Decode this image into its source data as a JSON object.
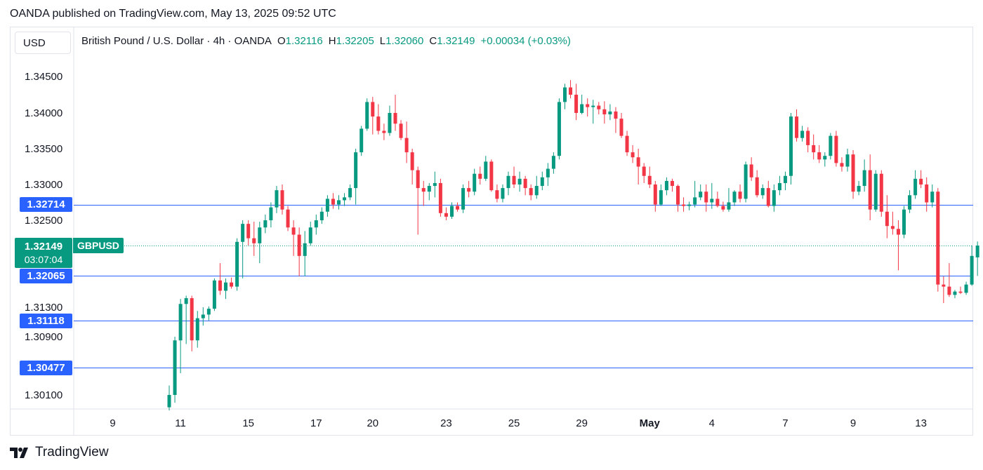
{
  "header": {
    "publisher_line": "OANDA published on TradingView.com, May 13, 2025 09:52 UTC"
  },
  "toolbar": {
    "currency": "USD"
  },
  "legend": {
    "symbol_desc": "British Pound / U.S. Dollar · 4h · OANDA",
    "o_label": "O",
    "o_value": "1.32116",
    "h_label": "H",
    "h_value": "1.32205",
    "l_label": "L",
    "l_value": "1.32060",
    "c_label": "C",
    "c_value": "1.32149",
    "change": "+0.00034 (+0.03%)"
  },
  "price_tags": {
    "line_1": "1.32714",
    "current_price": "1.32149",
    "countdown": "03:07:04",
    "symbol": "GBPUSD",
    "line_2": "1.32065",
    "line_3": "1.31118",
    "line_4": "1.30477"
  },
  "brand": {
    "name": "TradingView"
  },
  "colors": {
    "up": "#089981",
    "down": "#f23645",
    "hline": "#2962ff",
    "axis_text": "#131722",
    "current": "#089981"
  },
  "chart_data": {
    "type": "candlestick",
    "title": "British Pound / U.S. Dollar · 4h · OANDA",
    "y_tick_labels": [
      "1.34500",
      "1.34000",
      "1.33500",
      "1.33000",
      "1.32500",
      "1.31300",
      "1.30900",
      "1.30100"
    ],
    "y_tick_values": [
      1.345,
      1.34,
      1.335,
      1.33,
      1.325,
      1.313,
      1.309,
      1.301
    ],
    "x_tick_labels": [
      "9",
      "11",
      "15",
      "17",
      "20",
      "23",
      "25",
      "29",
      "May",
      "4",
      "7",
      "9",
      "13"
    ],
    "x_tick_index": [
      -10,
      2,
      14,
      26,
      36,
      49,
      61,
      73,
      85,
      96,
      109,
      121,
      133
    ],
    "horizontal_levels": [
      1.32714,
      1.32065,
      1.31118,
      1.30477
    ],
    "current_price": 1.32149,
    "candles": [
      {
        "o": 1.2994,
        "h": 1.3023,
        "l": 1.299,
        "c": 1.301
      },
      {
        "o": 1.301,
        "h": 1.309,
        "l": 1.3,
        "c": 1.3085
      },
      {
        "o": 1.3085,
        "h": 1.315,
        "l": 1.304,
        "c": 1.3138
      },
      {
        "o": 1.3138,
        "h": 1.3158,
        "l": 1.308,
        "c": 1.3152
      },
      {
        "o": 1.3152,
        "h": 1.3158,
        "l": 1.307,
        "c": 1.3085
      },
      {
        "o": 1.3085,
        "h": 1.3125,
        "l": 1.3075,
        "c": 1.3115
      },
      {
        "o": 1.3115,
        "h": 1.313,
        "l": 1.3105,
        "c": 1.312
      },
      {
        "o": 1.312,
        "h": 1.3132,
        "l": 1.3112,
        "c": 1.3128
      },
      {
        "o": 1.3128,
        "h": 1.32,
        "l": 1.3125,
        "c": 1.3195
      },
      {
        "o": 1.3195,
        "h": 1.321,
        "l": 1.316,
        "c": 1.317
      },
      {
        "o": 1.317,
        "h": 1.32,
        "l": 1.315,
        "c": 1.319
      },
      {
        "o": 1.319,
        "h": 1.3202,
        "l": 1.3175,
        "c": 1.318
      },
      {
        "o": 1.318,
        "h": 1.3225,
        "l": 1.317,
        "c": 1.322
      },
      {
        "o": 1.322,
        "h": 1.325,
        "l": 1.32,
        "c": 1.3245
      },
      {
        "o": 1.3245,
        "h": 1.325,
        "l": 1.3215,
        "c": 1.3225
      },
      {
        "o": 1.3225,
        "h": 1.3248,
        "l": 1.3212,
        "c": 1.3218
      },
      {
        "o": 1.3218,
        "h": 1.3248,
        "l": 1.321,
        "c": 1.324
      },
      {
        "o": 1.324,
        "h": 1.3258,
        "l": 1.3232,
        "c": 1.325
      },
      {
        "o": 1.325,
        "h": 1.3275,
        "l": 1.324,
        "c": 1.3268
      },
      {
        "o": 1.3268,
        "h": 1.3298,
        "l": 1.326,
        "c": 1.3292
      },
      {
        "o": 1.3292,
        "h": 1.33,
        "l": 1.3258,
        "c": 1.3265
      },
      {
        "o": 1.3265,
        "h": 1.327,
        "l": 1.3235,
        "c": 1.324
      },
      {
        "o": 1.324,
        "h": 1.325,
        "l": 1.3212,
        "c": 1.323
      },
      {
        "o": 1.323,
        "h": 1.324,
        "l": 1.3205,
        "c": 1.3212
      },
      {
        "o": 1.3212,
        "h": 1.3235,
        "l": 1.3205,
        "c": 1.3218
      },
      {
        "o": 1.3218,
        "h": 1.3248,
        "l": 1.3215,
        "c": 1.324
      },
      {
        "o": 1.324,
        "h": 1.3258,
        "l": 1.323,
        "c": 1.325
      },
      {
        "o": 1.325,
        "h": 1.3268,
        "l": 1.3245,
        "c": 1.3262
      },
      {
        "o": 1.3262,
        "h": 1.3285,
        "l": 1.3255,
        "c": 1.328
      },
      {
        "o": 1.328,
        "h": 1.3288,
        "l": 1.3266,
        "c": 1.3272
      },
      {
        "o": 1.3272,
        "h": 1.3285,
        "l": 1.3265,
        "c": 1.3278
      },
      {
        "o": 1.3278,
        "h": 1.3288,
        "l": 1.327,
        "c": 1.3282
      },
      {
        "o": 1.3282,
        "h": 1.33,
        "l": 1.3278,
        "c": 1.3295
      },
      {
        "o": 1.3295,
        "h": 1.335,
        "l": 1.3272,
        "c": 1.3345
      },
      {
        "o": 1.3345,
        "h": 1.3382,
        "l": 1.334,
        "c": 1.3378
      },
      {
        "o": 1.3378,
        "h": 1.342,
        "l": 1.3375,
        "c": 1.3415
      },
      {
        "o": 1.3415,
        "h": 1.3422,
        "l": 1.337,
        "c": 1.3395
      },
      {
        "o": 1.3395,
        "h": 1.3412,
        "l": 1.337,
        "c": 1.3375
      },
      {
        "o": 1.3375,
        "h": 1.3385,
        "l": 1.3362,
        "c": 1.3372
      },
      {
        "o": 1.3372,
        "h": 1.341,
        "l": 1.3368,
        "c": 1.34
      },
      {
        "o": 1.34,
        "h": 1.3425,
        "l": 1.3375,
        "c": 1.3385
      },
      {
        "o": 1.3385,
        "h": 1.339,
        "l": 1.3362,
        "c": 1.3365
      },
      {
        "o": 1.3365,
        "h": 1.3388,
        "l": 1.333,
        "c": 1.3345
      },
      {
        "o": 1.3345,
        "h": 1.335,
        "l": 1.33,
        "c": 1.332
      },
      {
        "o": 1.332,
        "h": 1.3325,
        "l": 1.323,
        "c": 1.3295
      },
      {
        "o": 1.3295,
        "h": 1.3305,
        "l": 1.327,
        "c": 1.329
      },
      {
        "o": 1.329,
        "h": 1.3302,
        "l": 1.3278,
        "c": 1.3298
      },
      {
        "o": 1.3298,
        "h": 1.3318,
        "l": 1.3282,
        "c": 1.3302
      },
      {
        "o": 1.3302,
        "h": 1.3308,
        "l": 1.3255,
        "c": 1.326
      },
      {
        "o": 1.326,
        "h": 1.3268,
        "l": 1.325,
        "c": 1.3255
      },
      {
        "o": 1.3255,
        "h": 1.3275,
        "l": 1.3252,
        "c": 1.327
      },
      {
        "o": 1.327,
        "h": 1.3275,
        "l": 1.3262,
        "c": 1.3265
      },
      {
        "o": 1.3265,
        "h": 1.33,
        "l": 1.326,
        "c": 1.3295
      },
      {
        "o": 1.3295,
        "h": 1.3305,
        "l": 1.3282,
        "c": 1.329
      },
      {
        "o": 1.329,
        "h": 1.3322,
        "l": 1.3285,
        "c": 1.3315
      },
      {
        "o": 1.3315,
        "h": 1.3325,
        "l": 1.33,
        "c": 1.3308
      },
      {
        "o": 1.3308,
        "h": 1.334,
        "l": 1.3305,
        "c": 1.3332
      },
      {
        "o": 1.3332,
        "h": 1.3335,
        "l": 1.329,
        "c": 1.3292
      },
      {
        "o": 1.3292,
        "h": 1.33,
        "l": 1.3275,
        "c": 1.328
      },
      {
        "o": 1.328,
        "h": 1.33,
        "l": 1.3275,
        "c": 1.3295
      },
      {
        "o": 1.3295,
        "h": 1.3318,
        "l": 1.3285,
        "c": 1.3312
      },
      {
        "o": 1.3312,
        "h": 1.3325,
        "l": 1.3295,
        "c": 1.33
      },
      {
        "o": 1.33,
        "h": 1.3318,
        "l": 1.329,
        "c": 1.3308
      },
      {
        "o": 1.3308,
        "h": 1.3312,
        "l": 1.3285,
        "c": 1.3295
      },
      {
        "o": 1.3295,
        "h": 1.33,
        "l": 1.3278,
        "c": 1.3285
      },
      {
        "o": 1.3285,
        "h": 1.3312,
        "l": 1.328,
        "c": 1.3298
      },
      {
        "o": 1.3298,
        "h": 1.3318,
        "l": 1.3292,
        "c": 1.331
      },
      {
        "o": 1.331,
        "h": 1.333,
        "l": 1.3298,
        "c": 1.3322
      },
      {
        "o": 1.3322,
        "h": 1.3345,
        "l": 1.3315,
        "c": 1.334
      },
      {
        "o": 1.334,
        "h": 1.342,
        "l": 1.3335,
        "c": 1.3415
      },
      {
        "o": 1.3415,
        "h": 1.344,
        "l": 1.3405,
        "c": 1.3435
      },
      {
        "o": 1.3435,
        "h": 1.3445,
        "l": 1.342,
        "c": 1.3425
      },
      {
        "o": 1.3425,
        "h": 1.344,
        "l": 1.339,
        "c": 1.34
      },
      {
        "o": 1.34,
        "h": 1.3425,
        "l": 1.3398,
        "c": 1.3412
      },
      {
        "o": 1.3412,
        "h": 1.342,
        "l": 1.3395,
        "c": 1.3408
      },
      {
        "o": 1.3408,
        "h": 1.3418,
        "l": 1.3385,
        "c": 1.341
      },
      {
        "o": 1.341,
        "h": 1.3415,
        "l": 1.3398,
        "c": 1.3405
      },
      {
        "o": 1.3405,
        "h": 1.3416,
        "l": 1.3385,
        "c": 1.3398
      },
      {
        "o": 1.3398,
        "h": 1.3412,
        "l": 1.339,
        "c": 1.3402
      },
      {
        "o": 1.3402,
        "h": 1.3408,
        "l": 1.3372,
        "c": 1.3392
      },
      {
        "o": 1.3392,
        "h": 1.34,
        "l": 1.3365,
        "c": 1.3368
      },
      {
        "o": 1.3368,
        "h": 1.3375,
        "l": 1.334,
        "c": 1.3345
      },
      {
        "o": 1.3345,
        "h": 1.3355,
        "l": 1.333,
        "c": 1.3338
      },
      {
        "o": 1.3338,
        "h": 1.335,
        "l": 1.33,
        "c": 1.3325
      },
      {
        "o": 1.3325,
        "h": 1.333,
        "l": 1.3302,
        "c": 1.3312
      },
      {
        "o": 1.3312,
        "h": 1.3325,
        "l": 1.3295,
        "c": 1.33
      },
      {
        "o": 1.33,
        "h": 1.3305,
        "l": 1.3262,
        "c": 1.3272
      },
      {
        "o": 1.3272,
        "h": 1.33,
        "l": 1.327,
        "c": 1.3292
      },
      {
        "o": 1.3292,
        "h": 1.331,
        "l": 1.3285,
        "c": 1.3305
      },
      {
        "o": 1.3305,
        "h": 1.3308,
        "l": 1.329,
        "c": 1.3298
      },
      {
        "o": 1.3298,
        "h": 1.33,
        "l": 1.3262,
        "c": 1.3272
      },
      {
        "o": 1.3272,
        "h": 1.3282,
        "l": 1.3262,
        "c": 1.327
      },
      {
        "o": 1.327,
        "h": 1.3276,
        "l": 1.3264,
        "c": 1.3272
      },
      {
        "o": 1.3272,
        "h": 1.3305,
        "l": 1.3268,
        "c": 1.3282
      },
      {
        "o": 1.3282,
        "h": 1.33,
        "l": 1.3278,
        "c": 1.329
      },
      {
        "o": 1.329,
        "h": 1.33,
        "l": 1.3262,
        "c": 1.3275
      },
      {
        "o": 1.3275,
        "h": 1.3302,
        "l": 1.3266,
        "c": 1.328
      },
      {
        "o": 1.328,
        "h": 1.329,
        "l": 1.3268,
        "c": 1.327
      },
      {
        "o": 1.327,
        "h": 1.3276,
        "l": 1.3262,
        "c": 1.3265
      },
      {
        "o": 1.3265,
        "h": 1.3295,
        "l": 1.3262,
        "c": 1.3275
      },
      {
        "o": 1.3275,
        "h": 1.3292,
        "l": 1.327,
        "c": 1.329
      },
      {
        "o": 1.329,
        "h": 1.33,
        "l": 1.3275,
        "c": 1.328
      },
      {
        "o": 1.328,
        "h": 1.3332,
        "l": 1.3275,
        "c": 1.3328
      },
      {
        "o": 1.3328,
        "h": 1.3338,
        "l": 1.3305,
        "c": 1.331
      },
      {
        "o": 1.331,
        "h": 1.332,
        "l": 1.3282,
        "c": 1.3285
      },
      {
        "o": 1.3285,
        "h": 1.33,
        "l": 1.328,
        "c": 1.3295
      },
      {
        "o": 1.3295,
        "h": 1.3305,
        "l": 1.3268,
        "c": 1.327
      },
      {
        "o": 1.327,
        "h": 1.33,
        "l": 1.3262,
        "c": 1.3292
      },
      {
        "o": 1.3292,
        "h": 1.3312,
        "l": 1.3285,
        "c": 1.3302
      },
      {
        "o": 1.3302,
        "h": 1.3318,
        "l": 1.3292,
        "c": 1.3312
      },
      {
        "o": 1.3312,
        "h": 1.34,
        "l": 1.33,
        "c": 1.3395
      },
      {
        "o": 1.3395,
        "h": 1.3405,
        "l": 1.336,
        "c": 1.3365
      },
      {
        "o": 1.3365,
        "h": 1.3382,
        "l": 1.336,
        "c": 1.3375
      },
      {
        "o": 1.3375,
        "h": 1.338,
        "l": 1.3345,
        "c": 1.3355
      },
      {
        "o": 1.3355,
        "h": 1.337,
        "l": 1.3335,
        "c": 1.3345
      },
      {
        "o": 1.3345,
        "h": 1.3355,
        "l": 1.333,
        "c": 1.3335
      },
      {
        "o": 1.3335,
        "h": 1.3345,
        "l": 1.3325,
        "c": 1.334
      },
      {
        "o": 1.334,
        "h": 1.3372,
        "l": 1.3335,
        "c": 1.3368
      },
      {
        "o": 1.3368,
        "h": 1.3375,
        "l": 1.3325,
        "c": 1.333
      },
      {
        "o": 1.333,
        "h": 1.3338,
        "l": 1.3318,
        "c": 1.3325
      },
      {
        "o": 1.3325,
        "h": 1.335,
        "l": 1.3318,
        "c": 1.3342
      },
      {
        "o": 1.3342,
        "h": 1.3348,
        "l": 1.328,
        "c": 1.329
      },
      {
        "o": 1.329,
        "h": 1.3305,
        "l": 1.3285,
        "c": 1.3298
      },
      {
        "o": 1.3298,
        "h": 1.3335,
        "l": 1.329,
        "c": 1.332
      },
      {
        "o": 1.332,
        "h": 1.3342,
        "l": 1.325,
        "c": 1.3265
      },
      {
        "o": 1.3265,
        "h": 1.332,
        "l": 1.3262,
        "c": 1.3315
      },
      {
        "o": 1.3315,
        "h": 1.332,
        "l": 1.3255,
        "c": 1.3262
      },
      {
        "o": 1.3262,
        "h": 1.3285,
        "l": 1.3225,
        "c": 1.3242
      },
      {
        "o": 1.3242,
        "h": 1.3262,
        "l": 1.323,
        "c": 1.3238
      },
      {
        "o": 1.3238,
        "h": 1.325,
        "l": 1.3208,
        "c": 1.323
      },
      {
        "o": 1.323,
        "h": 1.327,
        "l": 1.3225,
        "c": 1.3265
      },
      {
        "o": 1.3265,
        "h": 1.3292,
        "l": 1.326,
        "c": 1.3285
      },
      {
        "o": 1.3285,
        "h": 1.332,
        "l": 1.328,
        "c": 1.3308
      },
      {
        "o": 1.3308,
        "h": 1.332,
        "l": 1.3295,
        "c": 1.33
      },
      {
        "o": 1.33,
        "h": 1.331,
        "l": 1.3262,
        "c": 1.3275
      },
      {
        "o": 1.3275,
        "h": 1.33,
        "l": 1.3268,
        "c": 1.329
      },
      {
        "o": 1.329,
        "h": 1.3295,
        "l": 1.3168,
        "c": 1.3185
      },
      {
        "o": 1.3185,
        "h": 1.3205,
        "l": 1.314,
        "c": 1.318
      },
      {
        "o": 1.318,
        "h": 1.321,
        "l": 1.3155,
        "c": 1.316
      },
      {
        "o": 1.316,
        "h": 1.3172,
        "l": 1.3152,
        "c": 1.3168
      },
      {
        "o": 1.3168,
        "h": 1.318,
        "l": 1.3162,
        "c": 1.3165
      },
      {
        "o": 1.3165,
        "h": 1.3192,
        "l": 1.316,
        "c": 1.3185
      },
      {
        "o": 1.3185,
        "h": 1.3215,
        "l": 1.3182,
        "c": 1.3212
      },
      {
        "o": 1.32116,
        "h": 1.32205,
        "l": 1.3206,
        "c": 1.32149
      }
    ]
  }
}
